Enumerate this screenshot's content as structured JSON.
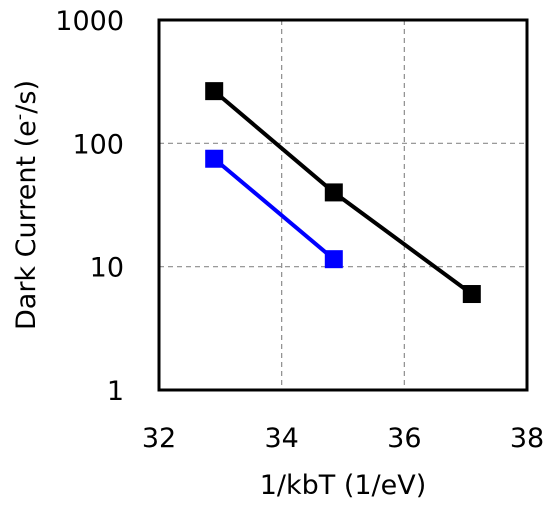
{
  "chart_data": {
    "type": "line",
    "title": "",
    "xlabel": "1/kbT (1/eV)",
    "ylabel_parts": {
      "prefix": "Dark Current (e",
      "sup": "-",
      "suffix": "/s)"
    },
    "xlim": [
      32,
      38
    ],
    "ylim": [
      1,
      1000
    ],
    "yscale": "log",
    "x_ticks": [
      32,
      34,
      36,
      38
    ],
    "y_ticks": [
      1,
      10,
      100,
      1000
    ],
    "x_tick_labels": [
      "32",
      "34",
      "36",
      "38"
    ],
    "y_tick_labels": [
      "1",
      "10",
      "100",
      "1000"
    ],
    "grid": true,
    "legend": "none",
    "series": [
      {
        "color": "#000000",
        "marker": "square",
        "x": [
          32.9,
          34.85,
          37.1
        ],
        "y": [
          265,
          40,
          6
        ]
      },
      {
        "color": "#0000ff",
        "marker": "square",
        "x": [
          32.9,
          34.85
        ],
        "y": [
          75,
          11.5
        ]
      }
    ]
  }
}
